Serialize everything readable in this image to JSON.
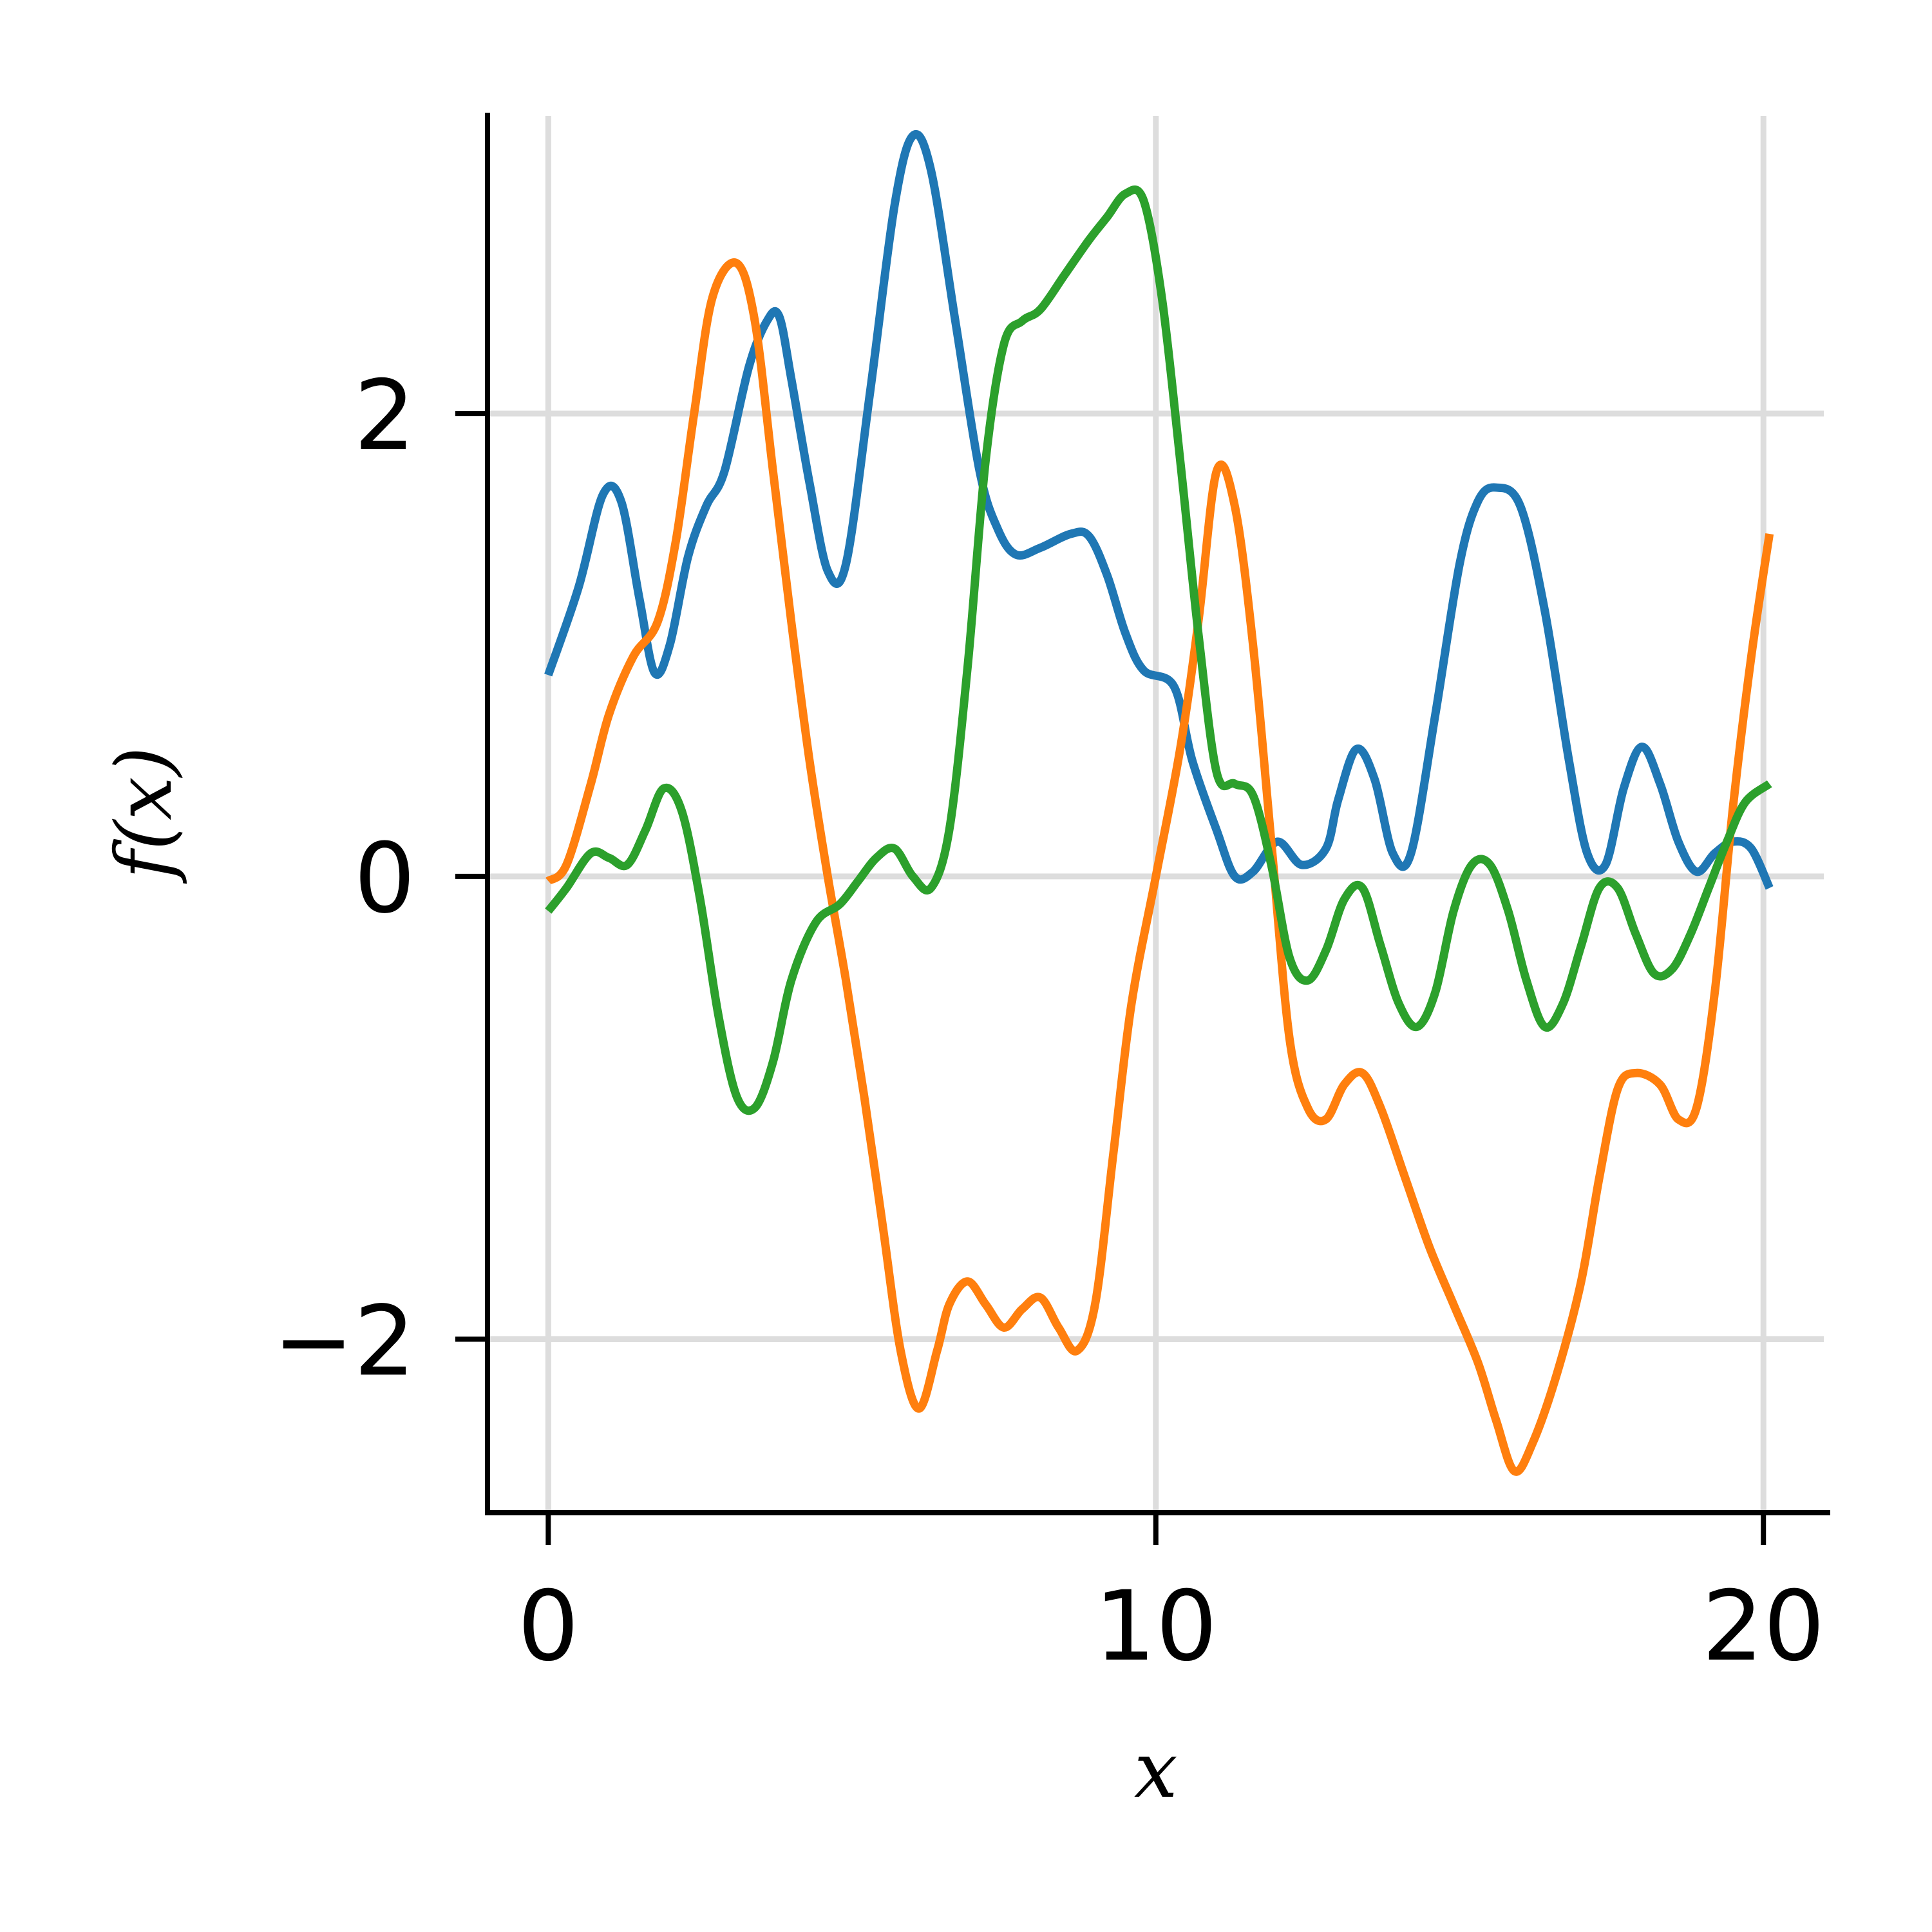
{
  "chart_data": {
    "type": "line",
    "xlabel": "x",
    "ylabel": "f(x)",
    "xlim": [
      -1,
      21.1
    ],
    "ylim": [
      -2.75,
      3.3
    ],
    "xticks": [
      0,
      10,
      20
    ],
    "xtick_labels": [
      "0",
      "10",
      "20"
    ],
    "yticks": [
      -2,
      0,
      2
    ],
    "ytick_labels": [
      "−2",
      "0",
      "2"
    ],
    "grid": true,
    "series": [
      {
        "color": "#1f77b4",
        "points": [
          [
            0,
            0.87
          ],
          [
            0.5,
            1.25
          ],
          [
            0.9,
            1.65
          ],
          [
            1.2,
            1.62
          ],
          [
            1.5,
            1.2
          ],
          [
            1.75,
            0.88
          ],
          [
            2.0,
            1.0
          ],
          [
            2.3,
            1.38
          ],
          [
            2.6,
            1.6
          ],
          [
            2.9,
            1.75
          ],
          [
            3.3,
            2.2
          ],
          [
            3.6,
            2.4
          ],
          [
            3.8,
            2.42
          ],
          [
            4.0,
            2.15
          ],
          [
            4.3,
            1.7
          ],
          [
            4.6,
            1.32
          ],
          [
            4.9,
            1.35
          ],
          [
            5.3,
            2.1
          ],
          [
            5.7,
            2.9
          ],
          [
            6.0,
            3.2
          ],
          [
            6.3,
            3.05
          ],
          [
            6.7,
            2.4
          ],
          [
            7.1,
            1.75
          ],
          [
            7.4,
            1.5
          ],
          [
            7.7,
            1.39
          ],
          [
            8.1,
            1.42
          ],
          [
            8.6,
            1.48
          ],
          [
            8.9,
            1.47
          ],
          [
            9.2,
            1.3
          ],
          [
            9.5,
            1.05
          ],
          [
            9.8,
            0.89
          ],
          [
            10.3,
            0.82
          ],
          [
            10.6,
            0.5
          ],
          [
            11.0,
            0.2
          ],
          [
            11.3,
            0.0
          ],
          [
            11.6,
            0.02
          ],
          [
            12.0,
            0.15
          ],
          [
            12.4,
            0.05
          ],
          [
            12.8,
            0.12
          ],
          [
            13.0,
            0.33
          ],
          [
            13.3,
            0.55
          ],
          [
            13.6,
            0.42
          ],
          [
            13.9,
            0.1
          ],
          [
            14.2,
            0.1
          ],
          [
            14.6,
            0.7
          ],
          [
            15.0,
            1.35
          ],
          [
            15.3,
            1.62
          ],
          [
            15.6,
            1.68
          ],
          [
            16.0,
            1.6
          ],
          [
            16.4,
            1.15
          ],
          [
            16.8,
            0.5
          ],
          [
            17.1,
            0.1
          ],
          [
            17.4,
            0.05
          ],
          [
            17.7,
            0.38
          ],
          [
            18.0,
            0.56
          ],
          [
            18.3,
            0.4
          ],
          [
            18.6,
            0.15
          ],
          [
            18.9,
            0.02
          ],
          [
            19.2,
            0.1
          ],
          [
            19.5,
            0.15
          ],
          [
            19.8,
            0.12
          ],
          [
            20.1,
            -0.05
          ]
        ]
      },
      {
        "color": "#ff7f0e",
        "points": [
          [
            0,
            -0.02
          ],
          [
            0.3,
            0.05
          ],
          [
            0.7,
            0.4
          ],
          [
            1.0,
            0.7
          ],
          [
            1.4,
            0.95
          ],
          [
            1.8,
            1.1
          ],
          [
            2.1,
            1.45
          ],
          [
            2.4,
            2.0
          ],
          [
            2.7,
            2.5
          ],
          [
            3.1,
            2.65
          ],
          [
            3.4,
            2.4
          ],
          [
            3.7,
            1.75
          ],
          [
            4.0,
            1.1
          ],
          [
            4.3,
            0.5
          ],
          [
            4.6,
            0.0
          ],
          [
            4.9,
            -0.45
          ],
          [
            5.2,
            -0.95
          ],
          [
            5.5,
            -1.5
          ],
          [
            5.8,
            -2.05
          ],
          [
            6.1,
            -2.3
          ],
          [
            6.4,
            -2.05
          ],
          [
            6.6,
            -1.85
          ],
          [
            6.9,
            -1.75
          ],
          [
            7.2,
            -1.85
          ],
          [
            7.5,
            -1.95
          ],
          [
            7.8,
            -1.87
          ],
          [
            8.1,
            -1.82
          ],
          [
            8.4,
            -1.95
          ],
          [
            8.7,
            -2.05
          ],
          [
            9.0,
            -1.85
          ],
          [
            9.3,
            -1.2
          ],
          [
            9.6,
            -0.55
          ],
          [
            10.0,
            0.0
          ],
          [
            10.4,
            0.55
          ],
          [
            10.7,
            1.1
          ],
          [
            11.0,
            1.75
          ],
          [
            11.3,
            1.6
          ],
          [
            11.6,
            1.0
          ],
          [
            11.9,
            0.15
          ],
          [
            12.2,
            -0.7
          ],
          [
            12.5,
            -1.0
          ],
          [
            12.8,
            -1.05
          ],
          [
            13.1,
            -0.9
          ],
          [
            13.4,
            -0.85
          ],
          [
            13.7,
            -1.0
          ],
          [
            14.1,
            -1.3
          ],
          [
            14.5,
            -1.6
          ],
          [
            14.9,
            -1.85
          ],
          [
            15.3,
            -2.1
          ],
          [
            15.6,
            -2.35
          ],
          [
            15.9,
            -2.57
          ],
          [
            16.2,
            -2.45
          ],
          [
            16.6,
            -2.15
          ],
          [
            17.0,
            -1.75
          ],
          [
            17.3,
            -1.3
          ],
          [
            17.6,
            -0.92
          ],
          [
            17.9,
            -0.85
          ],
          [
            18.3,
            -0.9
          ],
          [
            18.6,
            -1.05
          ],
          [
            18.9,
            -1.0
          ],
          [
            19.2,
            -0.5
          ],
          [
            19.5,
            0.3
          ],
          [
            19.8,
            0.95
          ],
          [
            20.1,
            1.48
          ]
        ]
      },
      {
        "color": "#2ca02c",
        "points": [
          [
            0,
            -0.15
          ],
          [
            0.3,
            -0.05
          ],
          [
            0.7,
            0.1
          ],
          [
            1.0,
            0.08
          ],
          [
            1.3,
            0.05
          ],
          [
            1.6,
            0.2
          ],
          [
            1.9,
            0.38
          ],
          [
            2.2,
            0.28
          ],
          [
            2.5,
            -0.1
          ],
          [
            2.8,
            -0.6
          ],
          [
            3.1,
            -0.95
          ],
          [
            3.4,
            -1.0
          ],
          [
            3.7,
            -0.8
          ],
          [
            4.0,
            -0.45
          ],
          [
            4.4,
            -0.2
          ],
          [
            4.8,
            -0.12
          ],
          [
            5.1,
            -0.02
          ],
          [
            5.4,
            0.08
          ],
          [
            5.7,
            0.12
          ],
          [
            6.0,
            0.0
          ],
          [
            6.3,
            -0.05
          ],
          [
            6.6,
            0.2
          ],
          [
            6.9,
            0.9
          ],
          [
            7.2,
            1.8
          ],
          [
            7.5,
            2.3
          ],
          [
            7.8,
            2.4
          ],
          [
            8.1,
            2.45
          ],
          [
            8.5,
            2.6
          ],
          [
            8.9,
            2.75
          ],
          [
            9.2,
            2.85
          ],
          [
            9.5,
            2.95
          ],
          [
            9.8,
            2.92
          ],
          [
            10.1,
            2.5
          ],
          [
            10.4,
            1.8
          ],
          [
            10.7,
            1.05
          ],
          [
            11.0,
            0.45
          ],
          [
            11.3,
            0.4
          ],
          [
            11.6,
            0.35
          ],
          [
            11.9,
            0.05
          ],
          [
            12.2,
            -0.35
          ],
          [
            12.5,
            -0.45
          ],
          [
            12.8,
            -0.32
          ],
          [
            13.1,
            -0.1
          ],
          [
            13.4,
            -0.05
          ],
          [
            13.7,
            -0.3
          ],
          [
            14.0,
            -0.55
          ],
          [
            14.3,
            -0.65
          ],
          [
            14.6,
            -0.5
          ],
          [
            14.9,
            -0.15
          ],
          [
            15.2,
            0.05
          ],
          [
            15.5,
            0.05
          ],
          [
            15.8,
            -0.15
          ],
          [
            16.1,
            -0.45
          ],
          [
            16.4,
            -0.65
          ],
          [
            16.7,
            -0.55
          ],
          [
            17.0,
            -0.3
          ],
          [
            17.3,
            -0.05
          ],
          [
            17.6,
            -0.05
          ],
          [
            17.9,
            -0.25
          ],
          [
            18.2,
            -0.42
          ],
          [
            18.5,
            -0.4
          ],
          [
            18.8,
            -0.25
          ],
          [
            19.1,
            -0.05
          ],
          [
            19.4,
            0.15
          ],
          [
            19.7,
            0.32
          ],
          [
            20.1,
            0.4
          ]
        ]
      }
    ]
  }
}
